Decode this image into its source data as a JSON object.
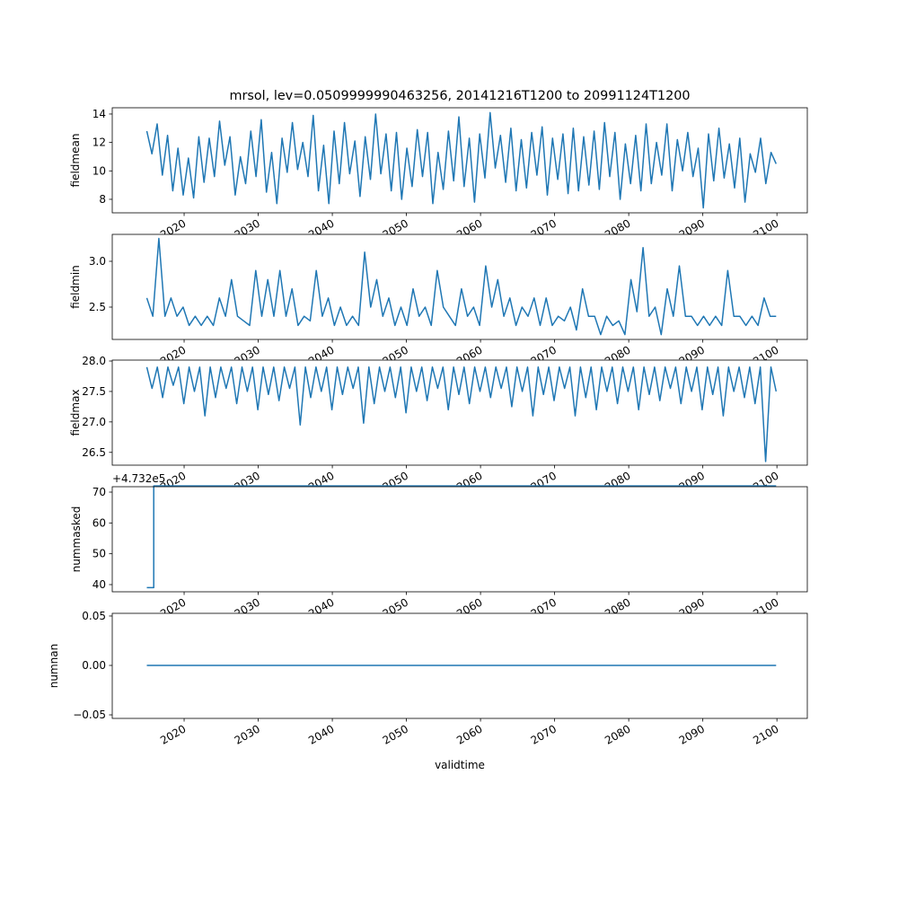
{
  "chart_data": {
    "type": "line",
    "title": "mrsol, lev=0.0509999990463256, 20141216T1200 to 20991124T1200",
    "xlabel": "validtime",
    "xlim": [
      2010.3,
      2104.1
    ],
    "xticks": [
      "2020",
      "2030",
      "2040",
      "2050",
      "2060",
      "2070",
      "2080",
      "2090",
      "2100"
    ],
    "color": "#1f77b4",
    "grid": false,
    "panels": [
      {
        "ylabel": "fieldmean",
        "ylim": [
          7.05,
          14.44
        ],
        "yticks": [
          "8",
          "10",
          "12",
          "14"
        ],
        "x_range": [
          2014.96,
          2099.9
        ],
        "values": [
          12.8,
          11.2,
          13.3,
          9.7,
          12.5,
          8.6,
          11.6,
          8.3,
          10.9,
          8.1,
          12.4,
          9.2,
          12.3,
          9.6,
          13.5,
          10.4,
          12.4,
          8.3,
          11.0,
          9.1,
          12.8,
          9.6,
          13.6,
          8.5,
          11.3,
          7.7,
          12.3,
          9.9,
          13.4,
          10.1,
          12.0,
          9.6,
          13.9,
          8.6,
          11.8,
          7.7,
          12.8,
          9.1,
          13.4,
          9.8,
          12.1,
          8.2,
          12.4,
          9.4,
          14.0,
          9.8,
          12.6,
          8.6,
          12.7,
          8.0,
          11.6,
          8.9,
          12.9,
          9.6,
          12.7,
          7.7,
          11.3,
          8.7,
          12.8,
          9.3,
          13.8,
          8.9,
          12.3,
          7.8,
          12.6,
          9.5,
          14.1,
          10.2,
          12.5,
          9.2,
          13.0,
          8.6,
          12.2,
          8.8,
          12.7,
          9.7,
          13.1,
          8.3,
          12.3,
          9.4,
          12.6,
          8.4,
          13.0,
          8.6,
          12.4,
          9.0,
          12.8,
          8.7,
          13.4,
          9.6,
          12.7,
          8.0,
          11.9,
          9.1,
          12.5,
          8.6,
          13.3,
          9.1,
          12.0,
          9.7,
          13.3,
          8.6,
          12.2,
          10.0,
          12.7,
          9.6,
          11.6,
          7.4,
          12.6,
          9.3,
          13.0,
          9.5,
          11.9,
          8.8,
          12.3,
          7.8,
          11.2,
          9.9,
          12.3,
          9.1,
          11.3,
          10.5
        ]
      },
      {
        "ylabel": "fieldmin",
        "ylim": [
          2.147,
          3.294
        ],
        "yticks": [
          "2.5",
          "3.0"
        ],
        "x_range": [
          2014.96,
          2099.9
        ],
        "values": [
          2.6,
          2.4,
          3.25,
          2.4,
          2.6,
          2.4,
          2.5,
          2.3,
          2.4,
          2.3,
          2.4,
          2.3,
          2.6,
          2.4,
          2.8,
          2.4,
          2.35,
          2.3,
          2.9,
          2.4,
          2.8,
          2.4,
          2.9,
          2.4,
          2.7,
          2.3,
          2.4,
          2.35,
          2.9,
          2.4,
          2.6,
          2.3,
          2.5,
          2.3,
          2.4,
          2.3,
          3.1,
          2.5,
          2.8,
          2.4,
          2.6,
          2.3,
          2.5,
          2.3,
          2.7,
          2.4,
          2.5,
          2.3,
          2.9,
          2.5,
          2.4,
          2.3,
          2.7,
          2.4,
          2.5,
          2.3,
          2.95,
          2.5,
          2.8,
          2.4,
          2.6,
          2.3,
          2.5,
          2.4,
          2.6,
          2.3,
          2.6,
          2.3,
          2.4,
          2.35,
          2.5,
          2.25,
          2.7,
          2.4,
          2.4,
          2.2,
          2.4,
          2.3,
          2.35,
          2.2,
          2.8,
          2.45,
          3.15,
          2.4,
          2.5,
          2.2,
          2.7,
          2.4,
          2.95,
          2.4,
          2.4,
          2.3,
          2.4,
          2.3,
          2.4,
          2.3,
          2.9,
          2.4,
          2.4,
          2.3,
          2.4,
          2.3,
          2.6,
          2.4,
          2.4
        ]
      },
      {
        "ylabel": "fieldmax",
        "ylim": [
          26.29,
          28.015
        ],
        "yticks": [
          "26.5",
          "27.0",
          "27.5",
          "28.0"
        ],
        "x_range": [
          2014.96,
          2099.9
        ],
        "values": [
          27.9,
          27.55,
          27.9,
          27.4,
          27.9,
          27.6,
          27.9,
          27.3,
          27.9,
          27.5,
          27.9,
          27.1,
          27.9,
          27.4,
          27.9,
          27.55,
          27.9,
          27.3,
          27.9,
          27.5,
          27.9,
          27.2,
          27.9,
          27.45,
          27.9,
          27.35,
          27.9,
          27.55,
          27.9,
          26.95,
          27.9,
          27.4,
          27.9,
          27.5,
          27.9,
          27.2,
          27.9,
          27.45,
          27.9,
          27.55,
          27.9,
          26.98,
          27.9,
          27.3,
          27.9,
          27.5,
          27.9,
          27.4,
          27.9,
          27.15,
          27.9,
          27.5,
          27.9,
          27.35,
          27.9,
          27.55,
          27.9,
          27.2,
          27.9,
          27.45,
          27.9,
          27.3,
          27.9,
          27.5,
          27.9,
          27.4,
          27.9,
          27.55,
          27.9,
          27.25,
          27.9,
          27.5,
          27.9,
          27.1,
          27.9,
          27.45,
          27.9,
          27.35,
          27.9,
          27.55,
          27.9,
          27.1,
          27.9,
          27.4,
          27.9,
          27.2,
          27.9,
          27.5,
          27.9,
          27.3,
          27.9,
          27.5,
          27.9,
          27.2,
          27.9,
          27.45,
          27.9,
          27.35,
          27.9,
          27.55,
          27.9,
          27.3,
          27.9,
          27.5,
          27.9,
          27.2,
          27.9,
          27.45,
          27.9,
          27.1,
          27.9,
          27.5,
          27.9,
          27.4,
          27.9,
          27.3,
          27.9,
          26.35,
          27.9,
          27.5
        ]
      },
      {
        "ylabel": "nummasked",
        "ylim": [
          37.67,
          71.75
        ],
        "yticks": [
          "40",
          "50",
          "60",
          "70"
        ],
        "offset_text": "+4.732e5",
        "x": [
          2014.96,
          2015.9,
          2015.9,
          2099.9
        ],
        "values": [
          39,
          39,
          72,
          72
        ]
      },
      {
        "ylabel": "numnan",
        "ylim": [
          -0.0536,
          0.0527
        ],
        "yticks": [
          "−0.05",
          "0.00",
          "0.05"
        ],
        "x": [
          2014.96,
          2099.9
        ],
        "values": [
          0,
          0
        ]
      }
    ]
  }
}
